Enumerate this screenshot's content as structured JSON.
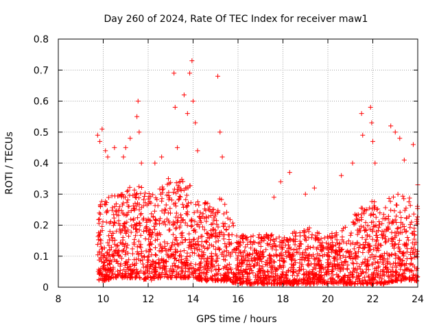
{
  "chart_data": {
    "type": "scatter",
    "title": "Day 260 of 2024, Rate Of TEC Index for receiver maw1",
    "xlabel": "GPS time / hours",
    "ylabel": "ROTI / TECUs",
    "xlim": [
      8,
      24
    ],
    "ylim": [
      0,
      0.8
    ],
    "x_ticks": [
      8,
      10,
      12,
      14,
      16,
      18,
      20,
      22,
      24
    ],
    "x_tick_labels": [
      "8",
      "10",
      "12",
      "14",
      "16",
      "18",
      "20",
      "22",
      "24"
    ],
    "y_ticks": [
      0,
      0.1,
      0.2,
      0.3,
      0.4,
      0.5,
      0.6,
      0.7,
      0.8
    ],
    "y_tick_labels": [
      "0",
      "0.1",
      "0.2",
      "0.3",
      "0.4",
      "0.5",
      "0.6",
      "0.7",
      "0.8"
    ],
    "grid": true,
    "marker": "+",
    "color": "#ff0000",
    "envelope": {
      "x": [
        9.75,
        10.0,
        10.5,
        11.0,
        11.5,
        12.0,
        12.5,
        13.0,
        13.5,
        14.0,
        14.5,
        15.0,
        15.25,
        15.5,
        16.0,
        16.5,
        17.0,
        17.5,
        18.0,
        18.5,
        19.0,
        19.5,
        20.0,
        20.5,
        21.0,
        21.5,
        22.0,
        22.5,
        23.0,
        23.5,
        24.0
      ],
      "low": [
        0.02,
        0.02,
        0.03,
        0.03,
        0.03,
        0.02,
        0.03,
        0.03,
        0.03,
        0.03,
        0.02,
        0.02,
        0.02,
        0.02,
        0.01,
        0.01,
        0.01,
        0.01,
        0.01,
        0.01,
        0.01,
        0.01,
        0.01,
        0.01,
        0.01,
        0.01,
        0.01,
        0.01,
        0.02,
        0.02,
        0.02
      ],
      "typical_high": [
        0.3,
        0.28,
        0.3,
        0.32,
        0.34,
        0.3,
        0.33,
        0.34,
        0.35,
        0.32,
        0.28,
        0.25,
        0.3,
        0.25,
        0.18,
        0.17,
        0.17,
        0.17,
        0.16,
        0.18,
        0.2,
        0.18,
        0.17,
        0.18,
        0.22,
        0.26,
        0.28,
        0.28,
        0.3,
        0.3,
        0.28
      ]
    },
    "outliers": [
      {
        "x": 9.75,
        "y": 0.49
      },
      {
        "x": 9.85,
        "y": 0.47
      },
      {
        "x": 9.95,
        "y": 0.51
      },
      {
        "x": 10.1,
        "y": 0.44
      },
      {
        "x": 10.2,
        "y": 0.42
      },
      {
        "x": 10.5,
        "y": 0.45
      },
      {
        "x": 10.9,
        "y": 0.42
      },
      {
        "x": 11.0,
        "y": 0.45
      },
      {
        "x": 11.2,
        "y": 0.48
      },
      {
        "x": 11.5,
        "y": 0.55
      },
      {
        "x": 11.55,
        "y": 0.6
      },
      {
        "x": 11.6,
        "y": 0.5
      },
      {
        "x": 11.7,
        "y": 0.4
      },
      {
        "x": 12.3,
        "y": 0.4
      },
      {
        "x": 12.6,
        "y": 0.42
      },
      {
        "x": 12.9,
        "y": 0.35
      },
      {
        "x": 13.15,
        "y": 0.69
      },
      {
        "x": 13.2,
        "y": 0.58
      },
      {
        "x": 13.3,
        "y": 0.45
      },
      {
        "x": 13.6,
        "y": 0.62
      },
      {
        "x": 13.75,
        "y": 0.56
      },
      {
        "x": 13.85,
        "y": 0.69
      },
      {
        "x": 13.95,
        "y": 0.73
      },
      {
        "x": 14.0,
        "y": 0.6
      },
      {
        "x": 14.1,
        "y": 0.53
      },
      {
        "x": 14.2,
        "y": 0.44
      },
      {
        "x": 15.1,
        "y": 0.68
      },
      {
        "x": 15.2,
        "y": 0.5
      },
      {
        "x": 15.3,
        "y": 0.42
      },
      {
        "x": 17.6,
        "y": 0.29
      },
      {
        "x": 17.9,
        "y": 0.34
      },
      {
        "x": 18.3,
        "y": 0.37
      },
      {
        "x": 19.0,
        "y": 0.3
      },
      {
        "x": 19.4,
        "y": 0.32
      },
      {
        "x": 20.6,
        "y": 0.36
      },
      {
        "x": 21.1,
        "y": 0.4
      },
      {
        "x": 21.5,
        "y": 0.56
      },
      {
        "x": 21.55,
        "y": 0.49
      },
      {
        "x": 21.9,
        "y": 0.58
      },
      {
        "x": 21.95,
        "y": 0.53
      },
      {
        "x": 22.0,
        "y": 0.47
      },
      {
        "x": 22.1,
        "y": 0.4
      },
      {
        "x": 22.8,
        "y": 0.52
      },
      {
        "x": 23.0,
        "y": 0.5
      },
      {
        "x": 23.2,
        "y": 0.48
      },
      {
        "x": 23.4,
        "y": 0.41
      },
      {
        "x": 23.8,
        "y": 0.46
      },
      {
        "x": 24.0,
        "y": 0.33
      }
    ]
  }
}
